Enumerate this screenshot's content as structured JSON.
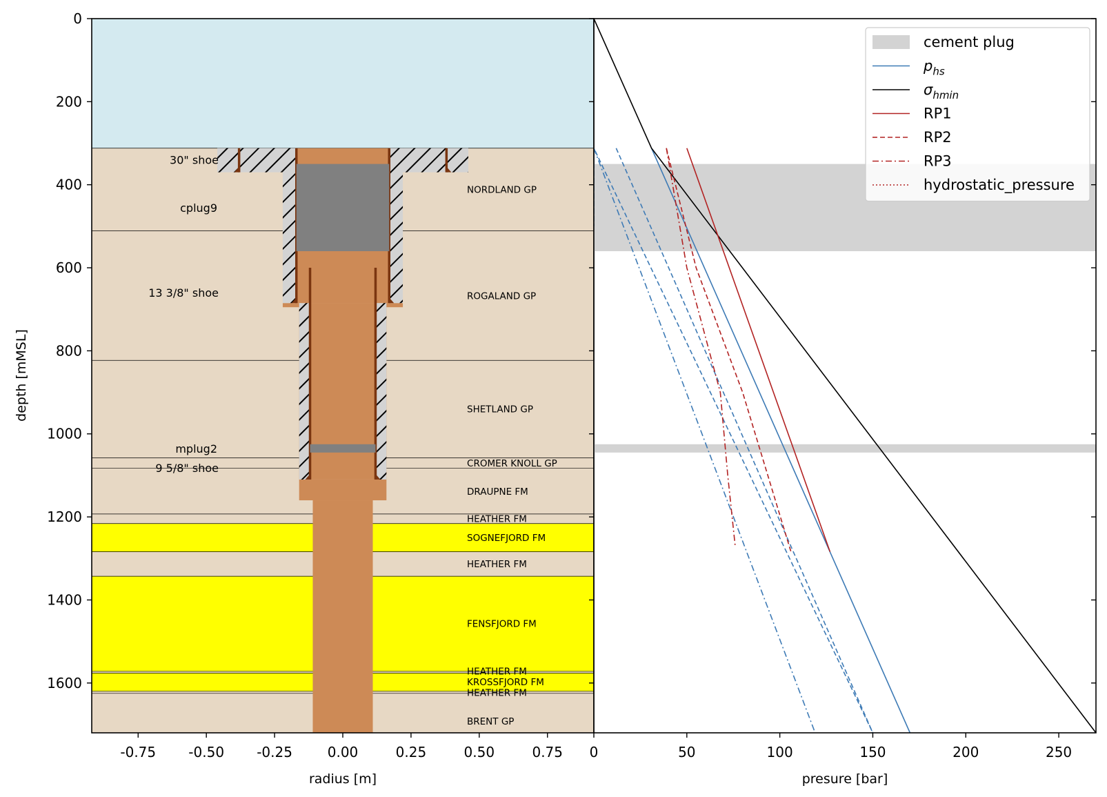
{
  "colors": {
    "sea": "#d4eaf0",
    "rock": "#e7d8c4",
    "sand": "#ffff00",
    "cement": "#d3d3d3",
    "mud": "#cd8a56",
    "plug": "#808080",
    "steel": "#7a3510",
    "phs": "#3d7ab5",
    "shmin": "#000000",
    "rp": "#b22222",
    "hydro": "#b22222"
  },
  "chart_data": [
    {
      "type": "well-schematic",
      "xlabel": "radius [m]",
      "ylabel": "depth [mMSL]",
      "xlim": [
        -0.92,
        0.92
      ],
      "ylim": [
        1720,
        0
      ],
      "xticks": [
        -0.75,
        -0.5,
        -0.25,
        0.0,
        0.25,
        0.5,
        0.75
      ],
      "xtick_labels": [
        "-0.75",
        "-0.50",
        "-0.25",
        "0.00",
        "0.25",
        "0.50",
        "0.75"
      ],
      "yticks": [
        0,
        200,
        400,
        600,
        800,
        1000,
        1200,
        1400,
        1600
      ],
      "ytick_labels": [
        "0",
        "200",
        "400",
        "600",
        "800",
        "1000",
        "1200",
        "1400",
        "1600"
      ],
      "seabed_depth": 312,
      "formations": [
        {
          "name": "NORDLAND GP",
          "top": 312,
          "bottom": 511,
          "sand": false,
          "label_depth": 411
        },
        {
          "name": "ROGALAND GP",
          "top": 511,
          "bottom": 823,
          "sand": false,
          "label_depth": 667
        },
        {
          "name": "SHETLAND GP",
          "top": 823,
          "bottom": 1058,
          "sand": false,
          "label_depth": 940
        },
        {
          "name": "CROMER KNOLL GP",
          "top": 1058,
          "bottom": 1083,
          "sand": false,
          "label_depth": 1070
        },
        {
          "name": "DRAUPNE FM",
          "top": 1083,
          "bottom": 1193,
          "sand": false,
          "label_depth": 1138
        },
        {
          "name": "HEATHER FM",
          "top": 1193,
          "bottom": 1216,
          "sand": false,
          "label_depth": 1204
        },
        {
          "name": "SOGNEFJORD FM",
          "top": 1216,
          "bottom": 1284,
          "sand": true,
          "label_depth": 1250
        },
        {
          "name": "HEATHER FM",
          "top": 1284,
          "bottom": 1343,
          "sand": false,
          "label_depth": 1313
        },
        {
          "name": "FENSFJORD FM",
          "top": 1343,
          "bottom": 1572,
          "sand": true,
          "label_depth": 1457
        },
        {
          "name": "HEATHER FM",
          "top": 1572,
          "bottom": 1576,
          "sand": false,
          "label_depth": 1571
        },
        {
          "name": "KROSSFJORD FM",
          "top": 1576,
          "bottom": 1620,
          "sand": true,
          "label_depth": 1597
        },
        {
          "name": "HEATHER FM",
          "top": 1620,
          "bottom": 1625,
          "sand": false,
          "label_depth": 1623
        },
        {
          "name": "BRENT GP",
          "top": 1625,
          "bottom": 1720,
          "sand": false,
          "label_depth": 1692
        }
      ],
      "casings": [
        {
          "label": "30\" shoe",
          "r_in": 0.38,
          "r_out": 0.46,
          "top": 312,
          "shoe": 370,
          "cement_top": 312,
          "label_depth": 370
        },
        {
          "label": "13 3/8\" shoe",
          "r_in": 0.17,
          "r_out": 0.22,
          "top": 312,
          "shoe": 685,
          "cement_top": 312,
          "label_depth": 690
        },
        {
          "label": "9 5/8\" shoe",
          "r_in": 0.12,
          "r_out": 0.16,
          "top": 600,
          "shoe": 1110,
          "cement_top": 685,
          "label_depth": 1112
        }
      ],
      "open_hole": {
        "radius": 0.11,
        "top": 1160,
        "bottom": 1720
      },
      "rathole": {
        "radius": 0.16,
        "top": 1110,
        "bottom": 1160
      },
      "plugs": [
        {
          "label": "cplug9",
          "top": 350,
          "bottom": 560,
          "radius": 0.17,
          "label_depth": 455
        },
        {
          "label": "mplug2",
          "top": 1025,
          "bottom": 1045,
          "radius": 0.12,
          "label_depth": 1035
        }
      ]
    },
    {
      "type": "line",
      "xlabel": "presure [bar]",
      "xlim": [
        0,
        270
      ],
      "ylim": [
        1720,
        0
      ],
      "xticks": [
        0,
        50,
        100,
        150,
        200,
        250
      ],
      "xtick_labels": [
        "0",
        "50",
        "100",
        "150",
        "200",
        "250"
      ],
      "cement_plug_bands": [
        [
          350,
          560
        ],
        [
          1025,
          1045
        ]
      ],
      "series": [
        {
          "name": "phs",
          "style": "solid",
          "color_key": "phs",
          "x": [
            0,
            0,
            31,
            170
          ],
          "y": [
            0,
            312,
            312,
            1720
          ]
        },
        {
          "name": "phs_upper",
          "style": "dashed",
          "color_key": "phs",
          "x": [
            0,
            0,
            0,
            150
          ],
          "y": [
            312,
            500,
            312,
            1720
          ]
        },
        {
          "name": "phs_sigma",
          "style": "dashed",
          "color_key": "phs",
          "x": [
            12,
            150
          ],
          "y": [
            312,
            1720
          ]
        },
        {
          "name": "phs_lower",
          "style": "dashdot",
          "color_key": "phs",
          "x": [
            0,
            119
          ],
          "y": [
            312,
            1720
          ]
        },
        {
          "name": "shmin",
          "style": "solid",
          "color_key": "shmin",
          "x": [
            0,
            31,
            270
          ],
          "y": [
            0,
            312,
            1720
          ]
        },
        {
          "name": "RP1",
          "style": "solid",
          "color_key": "rp",
          "x": [
            50,
            127
          ],
          "y": [
            312,
            1284
          ]
        },
        {
          "name": "RP2",
          "style": "dashed",
          "color_key": "rp",
          "x": [
            39,
            55,
            80,
            106
          ],
          "y": [
            312,
            600,
            900,
            1284
          ]
        },
        {
          "name": "RP3",
          "style": "dashdot",
          "color_key": "rp",
          "x": [
            39,
            50,
            62,
            68,
            70,
            72,
            76
          ],
          "y": [
            312,
            600,
            800,
            900,
            1000,
            1100,
            1270
          ]
        }
      ],
      "legend": {
        "position": "top-right",
        "entries": [
          {
            "label": "cement plug",
            "kind": "patch",
            "color_key": "cement"
          },
          {
            "label": "p",
            "sub": "hs",
            "italic": true,
            "kind": "line",
            "style": "solid",
            "color_key": "phs"
          },
          {
            "label": "σ",
            "sub": "hmin",
            "italic": true,
            "kind": "line",
            "style": "solid",
            "color_key": "shmin"
          },
          {
            "label": "RP1",
            "kind": "line",
            "style": "solid",
            "color_key": "rp"
          },
          {
            "label": "RP2",
            "kind": "line",
            "style": "dashed",
            "color_key": "rp"
          },
          {
            "label": "RP3",
            "kind": "line",
            "style": "dashdot",
            "color_key": "rp"
          },
          {
            "label": "hydrostatic_pressure",
            "kind": "line",
            "style": "dotted",
            "color_key": "hydro"
          }
        ]
      }
    }
  ]
}
